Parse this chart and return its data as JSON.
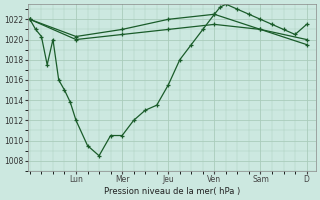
{
  "ylabel": "Pression niveau de la mer( hPa )",
  "background_color": "#cce8e0",
  "grid_color": "#aaccbb",
  "line_color": "#1a5c2a",
  "ylim": [
    1007,
    1023.5
  ],
  "yticks": [
    1008,
    1010,
    1012,
    1014,
    1016,
    1018,
    1020,
    1022
  ],
  "day_labels": [
    "Lun",
    "Mer",
    "Jeu",
    "Ven",
    "Sam",
    "D"
  ],
  "day_positions": [
    48,
    96,
    144,
    192,
    240,
    288
  ],
  "xlim": [
    0,
    312
  ],
  "series1_x": [
    0,
    6,
    12,
    18,
    24,
    30,
    36,
    42,
    48,
    60,
    72,
    84,
    96,
    108,
    120,
    132,
    144,
    156,
    168,
    180,
    192,
    198,
    204,
    216,
    228,
    240,
    252,
    264,
    276,
    288
  ],
  "series1_y": [
    1022,
    1021,
    1020.3,
    1017.5,
    1020,
    1016,
    1015,
    1013.8,
    1012,
    1009.5,
    1008.5,
    1010.5,
    1010.5,
    1012,
    1013,
    1013.5,
    1015.5,
    1018,
    1019.5,
    1021,
    1022.5,
    1023.2,
    1023.5,
    1023,
    1022.5,
    1022,
    1021.5,
    1021,
    1020.5,
    1021.5
  ],
  "series2_x": [
    0,
    48,
    96,
    144,
    192,
    240,
    288
  ],
  "series2_y": [
    1022,
    1020,
    1020.5,
    1021,
    1021.5,
    1021,
    1019.5
  ],
  "series3_x": [
    0,
    48,
    96,
    144,
    192,
    240,
    288
  ],
  "series3_y": [
    1022,
    1020.3,
    1021,
    1022,
    1022.5,
    1021,
    1020
  ]
}
